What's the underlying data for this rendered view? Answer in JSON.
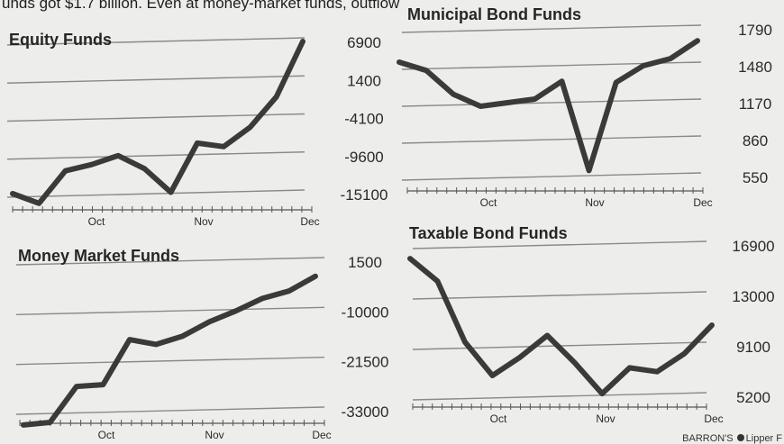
{
  "article_fragment": "unds got $1.7 billion. Even at money-market funds, outflow",
  "source_credit": "BARRON'S",
  "source_credit_2": "Lipper F",
  "chart_data": [
    {
      "type": "line",
      "title": "Equity Funds",
      "x_tick_labels": [
        "Oct",
        "Nov",
        "Dec"
      ],
      "y_ticks": [
        "6900",
        "1400",
        "-4100",
        "-9600",
        "-15100"
      ],
      "ylim": [
        -15100,
        6900
      ],
      "series": [
        {
          "values": [
            -15100,
            -16500,
            -11800,
            -10900,
            -9600,
            -11500,
            -14900,
            -7800,
            -8300,
            -5500,
            -1100,
            6900
          ]
        }
      ]
    },
    {
      "type": "line",
      "title": "Municipal Bond Funds",
      "x_tick_labels": [
        "Oct",
        "Nov",
        "Dec"
      ],
      "y_ticks": [
        "1790",
        "1480",
        "1170",
        "860",
        "550"
      ],
      "ylim": [
        550,
        1790
      ],
      "series": [
        {
          "values": [
            1510,
            1440,
            1240,
            1140,
            1170,
            1200,
            1350,
            600,
            1340,
            1480,
            1540,
            1690
          ]
        }
      ]
    },
    {
      "type": "line",
      "title": "Money Market Funds",
      "x_tick_labels": [
        "Oct",
        "Nov",
        "Dec"
      ],
      "y_ticks": [
        "1500",
        "-10000",
        "-21500",
        "-33000"
      ],
      "ylim": [
        -33000,
        1500
      ],
      "series": [
        {
          "values": [
            -36300,
            -35700,
            -27400,
            -27000,
            -16600,
            -17700,
            -15800,
            -12500,
            -10000,
            -7100,
            -5400,
            -2000
          ]
        }
      ]
    },
    {
      "type": "line",
      "title": "Taxable Bond Funds",
      "x_tick_labels": [
        "Oct",
        "Nov",
        "Dec"
      ],
      "y_ticks": [
        "16900",
        "13000",
        "9100",
        "5200"
      ],
      "ylim": [
        5200,
        16900
      ],
      "series": [
        {
          "values": [
            15850,
            14100,
            9400,
            6800,
            8200,
            9900,
            7800,
            5400,
            7400,
            7100,
            8500,
            10700
          ]
        }
      ]
    }
  ]
}
